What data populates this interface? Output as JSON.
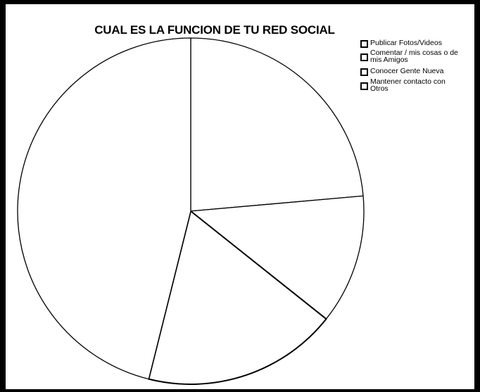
{
  "chart_data": {
    "type": "pie",
    "title": "CUAL ES LA FUNCION DE TU RED SOCIAL",
    "categories": [
      "Publicar Fotos/Videos",
      "Comentar / mis cosas o de mis Amigos",
      "Conocer Gente Nueva",
      "Mantener contacto con Otros"
    ],
    "values": [
      23.6,
      12.1,
      18.2,
      46.1
    ],
    "start_angle_deg": 0,
    "direction": "clockwise",
    "legend_position": "top-right",
    "slice_fill": "#ffffff",
    "slice_stroke": "#000000"
  },
  "legend": {
    "items": [
      {
        "label": "Publicar Fotos/Videos"
      },
      {
        "label": "Comentar / mis cosas o de mis Amigos"
      },
      {
        "label": "Conocer Gente Nueva"
      },
      {
        "label": "Mantener contacto con Otros"
      }
    ]
  }
}
